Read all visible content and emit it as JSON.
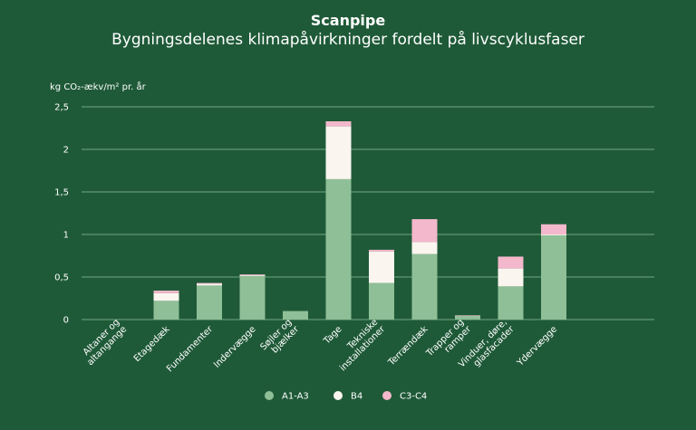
{
  "chart_data": {
    "type": "bar",
    "stacked": true,
    "title": "Scanpipe",
    "subtitle": "Bygningsdelenes klimapåvirkninger fordelt på livscyklusfaser",
    "ylabel": "kg CO₂-ækv/m² pr. år",
    "xlabel": "",
    "ylim": [
      0,
      2.5
    ],
    "yticks": [
      "0",
      "0,5",
      "1",
      "1,5",
      "2",
      "2,5"
    ],
    "ytick_values": [
      0,
      0.5,
      1,
      1.5,
      2,
      2.5
    ],
    "grid": true,
    "legend_position": "bottom",
    "categories": [
      [
        "Altaner og",
        "altangange"
      ],
      [
        "Etagedæk"
      ],
      [
        "Fundamenter"
      ],
      [
        "Indervægge"
      ],
      [
        "Søjler og",
        "bjælker"
      ],
      [
        "Tage"
      ],
      [
        "Tekniske",
        "installationer"
      ],
      [
        "Terrændæk"
      ],
      [
        "Trapper og",
        "ramper"
      ],
      [
        "Vinduer, døre,",
        "glasfacader"
      ],
      [
        "Ydervægge"
      ]
    ],
    "series": [
      {
        "name": "A1-A3",
        "color": "#8fbf97",
        "values": [
          0,
          0.22,
          0.4,
          0.51,
          0.1,
          1.65,
          0.43,
          0.77,
          0.04,
          0.39,
          0.99
        ]
      },
      {
        "name": "B4",
        "color": "#fbf5ef",
        "values": [
          0,
          0.09,
          0.02,
          0.01,
          0,
          0.62,
          0.37,
          0.14,
          0.005,
          0.21,
          0.01
        ]
      },
      {
        "name": "C3-C4",
        "color": "#f3b8cb",
        "values": [
          0,
          0.03,
          0.01,
          0.01,
          0,
          0.06,
          0.02,
          0.27,
          0.005,
          0.14,
          0.12
        ]
      }
    ]
  }
}
